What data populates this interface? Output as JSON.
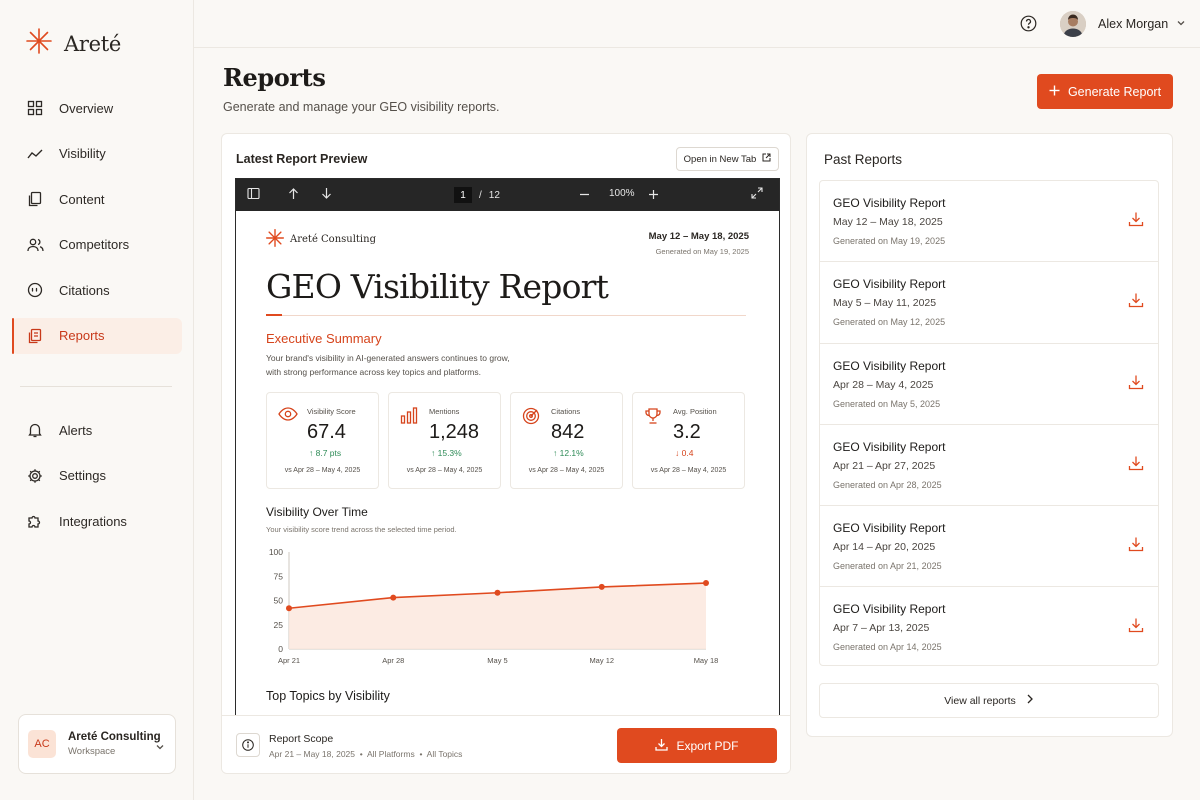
{
  "brand": {
    "name": "Areté"
  },
  "nav": {
    "items": [
      {
        "label": "Overview",
        "icon": "grid-icon"
      },
      {
        "label": "Visibility",
        "icon": "trend-icon"
      },
      {
        "label": "Content",
        "icon": "files-icon"
      },
      {
        "label": "Competitors",
        "icon": "users-icon"
      },
      {
        "label": "Citations",
        "icon": "quote-icon"
      },
      {
        "label": "Reports",
        "icon": "report-icon",
        "active": true
      }
    ],
    "secondary": [
      {
        "label": "Alerts",
        "icon": "bell-icon"
      },
      {
        "label": "Settings",
        "icon": "gear-icon"
      },
      {
        "label": "Integrations",
        "icon": "puzzle-icon"
      }
    ]
  },
  "workspace": {
    "initials": "AC",
    "name": "Areté Consulting",
    "sub": "Workspace"
  },
  "user": {
    "name": "Alex Morgan"
  },
  "page": {
    "title": "Reports",
    "subtitle": "Generate and manage your GEO visibility reports.",
    "generate_label": "Generate Report"
  },
  "preview": {
    "title": "Latest Report Preview",
    "open_tab_label": "Open in New Tab",
    "toolbar": {
      "page_current": "1",
      "page_sep": "/",
      "page_total": "12",
      "zoom": "100%"
    },
    "doc": {
      "brand": "Areté Consulting",
      "date_range": "May 12 – May 18, 2025",
      "generated": "Generated on May 19, 2025",
      "title": "GEO Visibility Report",
      "exec_title": "Executive Summary",
      "exec_text": "Your brand's visibility in AI-generated answers continues to grow, with strong performance across key topics and platforms.",
      "kpis": [
        {
          "label": "Visibility Score",
          "value": "67.4",
          "delta": "↑ 8.7 pts",
          "trend": "up",
          "vs": "vs Apr 28 – May 4, 2025"
        },
        {
          "label": "Mentions",
          "value": "1,248",
          "delta": "↑ 15.3%",
          "trend": "up",
          "vs": "vs Apr 28 – May 4, 2025"
        },
        {
          "label": "Citations",
          "value": "842",
          "delta": "↑ 12.1%",
          "trend": "up",
          "vs": "vs Apr 28 – May 4, 2025"
        },
        {
          "label": "Avg. Position",
          "value": "3.2",
          "delta": "↓ 0.4",
          "trend": "down",
          "vs": "vs Apr 28 – May 4, 2025"
        }
      ],
      "vot_title": "Visibility Over Time",
      "vot_sub": "Your visibility score trend across the selected time period.",
      "topics_title": "Top Topics by Visibility"
    },
    "footer": {
      "scope_title": "Report Scope",
      "scope_range": "Apr 21 – May 18, 2025",
      "scope_platforms": "All Platforms",
      "scope_topics": "All Topics",
      "export_label": "Export PDF"
    }
  },
  "chart_data": {
    "type": "area",
    "x": [
      "Apr 21",
      "Apr 28",
      "May 5",
      "May 12",
      "May 18"
    ],
    "series": [
      {
        "values": [
          42,
          53,
          58,
          64,
          68
        ]
      }
    ],
    "yticks": [
      100,
      75,
      50,
      25,
      0
    ],
    "ylim": [
      0,
      100
    ],
    "grid": false
  },
  "past": {
    "title": "Past Reports",
    "items": [
      {
        "name": "GEO Visibility Report",
        "range": "May 12 – May 18, 2025",
        "generated": "Generated on May 19, 2025"
      },
      {
        "name": "GEO Visibility Report",
        "range": "May 5 – May 11, 2025",
        "generated": "Generated on May 12, 2025"
      },
      {
        "name": "GEO Visibility Report",
        "range": "Apr 28 – May 4, 2025",
        "generated": "Generated on May 5, 2025"
      },
      {
        "name": "GEO Visibility Report",
        "range": "Apr 21 – Apr 27, 2025",
        "generated": "Generated on Apr 28, 2025"
      },
      {
        "name": "GEO Visibility Report",
        "range": "Apr 14 – Apr 20, 2025",
        "generated": "Generated on Apr 21, 2025"
      },
      {
        "name": "GEO Visibility Report",
        "range": "Apr 7 – Apr 13, 2025",
        "generated": "Generated on Apr 14, 2025"
      }
    ],
    "view_all_label": "View all reports"
  },
  "colors": {
    "accent": "#e04a1f",
    "up": "#2e8b57",
    "down": "#d6441c",
    "bg": "#faf8f5"
  }
}
